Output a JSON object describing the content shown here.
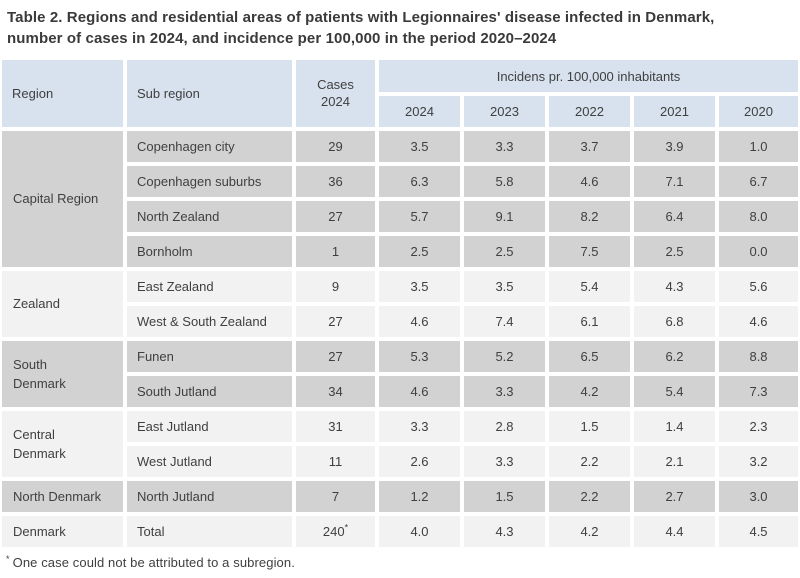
{
  "title": "Table 2. Regions and residential areas of patients with Legionnaires' disease infected in Denmark,\nnumber of cases in 2024, and incidence per 100,000 in the period 2020–2024",
  "colors": {
    "header-blue": "#d7e2ee",
    "row-gray": "#d2d2d2",
    "row-light": "#f2f2f2",
    "text": "#404040"
  },
  "table": {
    "headers": {
      "region": "Region",
      "sub_region": "Sub region",
      "cases": "Cases\n2024",
      "incidence_group": "Incidens pr. 100,000 inhabitants",
      "years": [
        "2024",
        "2023",
        "2022",
        "2021",
        "2020"
      ]
    },
    "groups": [
      {
        "region": "Capital Region",
        "shade": "gray",
        "rows": [
          {
            "sub_region": "Copenhagen city",
            "cases": "29",
            "incidence": [
              "3.5",
              "3.3",
              "3.7",
              "3.9",
              "1.0"
            ]
          },
          {
            "sub_region": "Copenhagen suburbs",
            "cases": "36",
            "incidence": [
              "6.3",
              "5.8",
              "4.6",
              "7.1",
              "6.7"
            ]
          },
          {
            "sub_region": "North Zealand",
            "cases": "27",
            "incidence": [
              "5.7",
              "9.1",
              "8.2",
              "6.4",
              "8.0"
            ]
          },
          {
            "sub_region": "Bornholm",
            "cases": "1",
            "incidence": [
              "2.5",
              "2.5",
              "7.5",
              "2.5",
              "0.0"
            ]
          }
        ]
      },
      {
        "region": "Zealand",
        "shade": "light",
        "rows": [
          {
            "sub_region": "East Zealand",
            "cases": "9",
            "incidence": [
              "3.5",
              "3.5",
              "5.4",
              "4.3",
              "5.6"
            ]
          },
          {
            "sub_region": "West & South Zealand",
            "cases": "27",
            "incidence": [
              "4.6",
              "7.4",
              "6.1",
              "6.8",
              "4.6"
            ]
          }
        ]
      },
      {
        "region": "South Denmark",
        "shade": "gray",
        "rows": [
          {
            "sub_region": "Funen",
            "cases": "27",
            "incidence": [
              "5.3",
              "5.2",
              "6.5",
              "6.2",
              "8.8"
            ]
          },
          {
            "sub_region": "South Jutland",
            "cases": "34",
            "incidence": [
              "4.6",
              "3.3",
              "4.2",
              "5.4",
              "7.3"
            ]
          }
        ]
      },
      {
        "region": "Central Denmark",
        "shade": "light",
        "rows": [
          {
            "sub_region": "East Jutland",
            "cases": "31",
            "incidence": [
              "3.3",
              "2.8",
              "1.5",
              "1.4",
              "2.3"
            ]
          },
          {
            "sub_region": "West Jutland",
            "cases": "11",
            "incidence": [
              "2.6",
              "3.3",
              "2.2",
              "2.1",
              "3.2"
            ]
          }
        ]
      },
      {
        "region": "North Denmark",
        "shade": "gray",
        "rows": [
          {
            "sub_region": "North Jutland",
            "cases": "7",
            "incidence": [
              "1.2",
              "1.5",
              "2.2",
              "2.7",
              "3.0"
            ]
          }
        ]
      },
      {
        "region": "Denmark",
        "shade": "light",
        "rows": [
          {
            "sub_region": "Total",
            "cases": "240",
            "cases_note": "*",
            "incidence": [
              "4.0",
              "4.3",
              "4.2",
              "4.4",
              "4.5"
            ]
          }
        ]
      }
    ]
  },
  "footnote_marker": "*",
  "footnote_text": "One case could not be attributed to a subregion."
}
